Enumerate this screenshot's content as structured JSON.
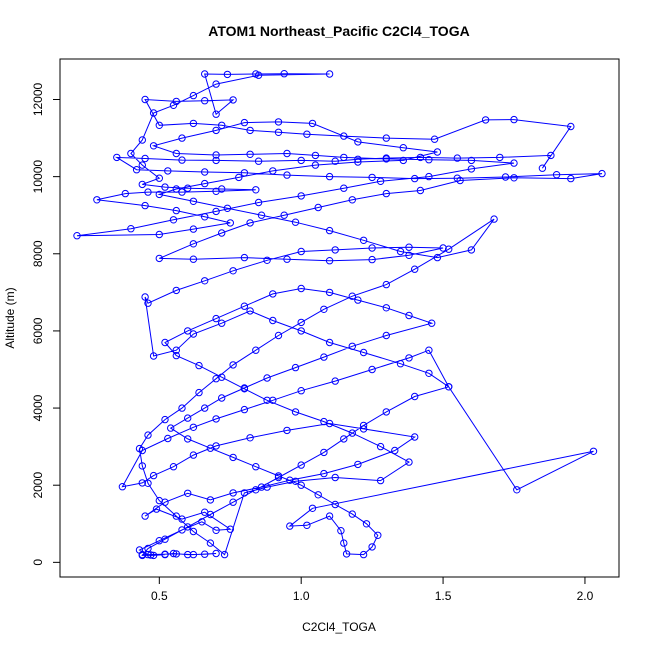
{
  "chart_data": {
    "type": "line",
    "title": "ATOM1 Northeast_Pacific C2Cl4_TOGA",
    "xlabel": "C2Cl4_TOGA",
    "ylabel": "Altitude (m)",
    "xlim": [
      0.15,
      2.12
    ],
    "ylim": [
      -380,
      13050
    ],
    "xticks": [
      0.5,
      1.0,
      1.5,
      2.0
    ],
    "xtick_labels": [
      "0.5",
      "1.0",
      "1.5",
      "2.0"
    ],
    "yticks": [
      0,
      2000,
      4000,
      6000,
      8000,
      10000,
      12000
    ],
    "ytick_labels": [
      "0",
      "2000",
      "4000",
      "6000",
      "8000",
      "10000",
      "12000"
    ],
    "marker": "open-circle",
    "grid": false,
    "series": [
      {
        "color": "#0000ff",
        "points": [
          [
            0.44,
            200
          ],
          [
            0.47,
            190
          ],
          [
            0.52,
            210
          ],
          [
            0.55,
            230
          ],
          [
            0.6,
            200
          ],
          [
            0.66,
            210
          ],
          [
            0.7,
            230
          ],
          [
            0.62,
            200
          ],
          [
            0.56,
            220
          ],
          [
            0.46,
            200
          ],
          [
            0.43,
            320
          ],
          [
            0.5,
            560
          ],
          [
            0.58,
            840
          ],
          [
            0.65,
            1050
          ],
          [
            0.7,
            830
          ],
          [
            0.75,
            860
          ],
          [
            0.66,
            1300
          ],
          [
            0.58,
            1120
          ],
          [
            0.49,
            1380
          ],
          [
            0.45,
            1200
          ],
          [
            0.52,
            1560
          ],
          [
            0.6,
            1790
          ],
          [
            0.68,
            1620
          ],
          [
            0.76,
            1800
          ],
          [
            0.86,
            1950
          ],
          [
            0.96,
            2130
          ],
          [
            1.08,
            2300
          ],
          [
            1.2,
            2540
          ],
          [
            1.33,
            2900
          ],
          [
            1.4,
            3250
          ],
          [
            1.22,
            3460
          ],
          [
            1.1,
            3600
          ],
          [
            0.95,
            3420
          ],
          [
            0.82,
            3230
          ],
          [
            0.7,
            3020
          ],
          [
            0.62,
            2780
          ],
          [
            0.55,
            2480
          ],
          [
            0.48,
            2250
          ],
          [
            0.44,
            2060
          ],
          [
            0.37,
            1960
          ],
          [
            0.44,
            2900
          ],
          [
            0.53,
            3210
          ],
          [
            0.62,
            3500
          ],
          [
            0.7,
            3720
          ],
          [
            0.8,
            3960
          ],
          [
            0.9,
            4200
          ],
          [
            1.0,
            4450
          ],
          [
            1.12,
            4700
          ],
          [
            1.25,
            5000
          ],
          [
            1.38,
            5300
          ],
          [
            1.45,
            5500
          ],
          [
            1.52,
            4550
          ],
          [
            1.45,
            4900
          ],
          [
            1.35,
            5150
          ],
          [
            1.22,
            5440
          ],
          [
            1.1,
            5700
          ],
          [
            1.0,
            6000
          ],
          [
            0.9,
            6270
          ],
          [
            0.82,
            6520
          ],
          [
            0.72,
            6200
          ],
          [
            0.62,
            5920
          ],
          [
            0.56,
            5500
          ],
          [
            0.48,
            5350
          ],
          [
            0.45,
            6880
          ],
          [
            0.46,
            6720
          ],
          [
            0.56,
            7050
          ],
          [
            0.66,
            7300
          ],
          [
            0.76,
            7560
          ],
          [
            0.88,
            7830
          ],
          [
            1.0,
            8060
          ],
          [
            1.12,
            8100
          ],
          [
            1.25,
            8150
          ],
          [
            1.38,
            8170
          ],
          [
            1.5,
            8150
          ],
          [
            1.38,
            7960
          ],
          [
            1.25,
            7850
          ],
          [
            1.1,
            7820
          ],
          [
            0.95,
            7860
          ],
          [
            0.8,
            7900
          ],
          [
            0.62,
            7860
          ],
          [
            0.5,
            7880
          ],
          [
            0.62,
            8260
          ],
          [
            0.72,
            8540
          ],
          [
            0.82,
            8800
          ],
          [
            0.94,
            9000
          ],
          [
            1.06,
            9200
          ],
          [
            1.18,
            9400
          ],
          [
            1.3,
            9560
          ],
          [
            1.42,
            9640
          ],
          [
            1.56,
            9900
          ],
          [
            1.75,
            9970
          ],
          [
            1.95,
            9950
          ],
          [
            2.06,
            10080
          ],
          [
            1.9,
            10050
          ],
          [
            1.72,
            9990
          ],
          [
            1.55,
            9960
          ],
          [
            1.4,
            9950
          ],
          [
            1.25,
            9980
          ],
          [
            1.1,
            10000
          ],
          [
            0.95,
            10040
          ],
          [
            0.8,
            10100
          ],
          [
            0.66,
            10120
          ],
          [
            0.53,
            10150
          ],
          [
            0.42,
            10180
          ],
          [
            0.35,
            10500
          ],
          [
            0.45,
            10470
          ],
          [
            0.58,
            10430
          ],
          [
            0.7,
            10420
          ],
          [
            0.85,
            10400
          ],
          [
            1.0,
            10420
          ],
          [
            1.12,
            10400
          ],
          [
            1.2,
            10450
          ],
          [
            1.3,
            10480
          ],
          [
            1.42,
            10500
          ],
          [
            1.55,
            10480
          ],
          [
            1.7,
            10500
          ],
          [
            1.88,
            10550
          ],
          [
            1.85,
            10220
          ],
          [
            1.95,
            11300
          ],
          [
            1.75,
            11480
          ],
          [
            1.65,
            11470
          ],
          [
            1.47,
            10970
          ],
          [
            1.3,
            11000
          ],
          [
            1.15,
            11050
          ],
          [
            1.02,
            11100
          ],
          [
            0.92,
            11150
          ],
          [
            0.82,
            11200
          ],
          [
            0.72,
            11330
          ],
          [
            0.62,
            11380
          ],
          [
            0.5,
            11330
          ],
          [
            0.45,
            12000
          ],
          [
            0.56,
            11950
          ],
          [
            0.66,
            11970
          ],
          [
            0.76,
            11990
          ],
          [
            0.7,
            11620
          ],
          [
            0.66,
            12660
          ],
          [
            0.74,
            12650
          ],
          [
            0.84,
            12660
          ],
          [
            0.94,
            12670
          ],
          [
            1.1,
            12660
          ],
          [
            0.85,
            12630
          ],
          [
            0.7,
            12400
          ],
          [
            0.62,
            12100
          ],
          [
            0.55,
            11850
          ],
          [
            0.48,
            11650
          ],
          [
            0.44,
            10950
          ],
          [
            0.4,
            10600
          ],
          [
            0.44,
            10300
          ],
          [
            0.5,
            9960
          ],
          [
            0.44,
            9800
          ],
          [
            0.52,
            9730
          ],
          [
            0.6,
            9700
          ],
          [
            0.72,
            9680
          ],
          [
            0.84,
            9660
          ],
          [
            0.7,
            9620
          ],
          [
            0.58,
            9600
          ],
          [
            0.46,
            9600
          ],
          [
            0.38,
            9560
          ],
          [
            0.28,
            9400
          ],
          [
            0.45,
            9250
          ],
          [
            0.56,
            9120
          ],
          [
            0.66,
            8960
          ],
          [
            0.75,
            8800
          ],
          [
            0.62,
            8640
          ],
          [
            0.5,
            8500
          ],
          [
            0.21,
            8470
          ],
          [
            0.4,
            8650
          ],
          [
            0.55,
            8880
          ],
          [
            0.7,
            9100
          ],
          [
            0.85,
            9330
          ],
          [
            1.0,
            9500
          ],
          [
            1.15,
            9700
          ],
          [
            1.28,
            9880
          ],
          [
            1.45,
            10000
          ],
          [
            1.6,
            10200
          ],
          [
            1.75,
            10350
          ],
          [
            1.6,
            10420
          ],
          [
            1.45,
            10440
          ],
          [
            1.3,
            10460
          ],
          [
            1.15,
            10500
          ],
          [
            1.05,
            10550
          ],
          [
            0.95,
            10600
          ],
          [
            0.82,
            10580
          ],
          [
            0.7,
            10560
          ],
          [
            0.56,
            10600
          ],
          [
            0.48,
            10800
          ],
          [
            0.58,
            11000
          ],
          [
            0.7,
            11200
          ],
          [
            0.8,
            11400
          ],
          [
            0.92,
            11420
          ],
          [
            1.04,
            11380
          ],
          [
            1.2,
            10900
          ],
          [
            1.36,
            10750
          ],
          [
            1.48,
            10640
          ],
          [
            1.36,
            10420
          ],
          [
            1.2,
            10380
          ],
          [
            1.05,
            10300
          ],
          [
            0.9,
            10150
          ],
          [
            0.78,
            9980
          ],
          [
            0.66,
            9820
          ],
          [
            0.56,
            9680
          ],
          [
            0.5,
            9540
          ],
          [
            0.62,
            9360
          ],
          [
            0.74,
            9180
          ],
          [
            0.86,
            9000
          ],
          [
            0.98,
            8820
          ],
          [
            1.1,
            8600
          ],
          [
            1.22,
            8350
          ],
          [
            1.35,
            8060
          ],
          [
            1.48,
            7900
          ],
          [
            1.6,
            8100
          ],
          [
            1.68,
            8900
          ],
          [
            1.52,
            8120
          ],
          [
            1.4,
            7600
          ],
          [
            1.3,
            7200
          ],
          [
            1.18,
            6900
          ],
          [
            1.08,
            6560
          ],
          [
            1.0,
            6220
          ],
          [
            0.92,
            5880
          ],
          [
            0.84,
            5500
          ],
          [
            0.76,
            5120
          ],
          [
            0.7,
            4760
          ],
          [
            0.64,
            4400
          ],
          [
            0.58,
            4000
          ],
          [
            0.52,
            3700
          ],
          [
            0.46,
            3300
          ],
          [
            0.43,
            2950
          ],
          [
            0.44,
            2500
          ],
          [
            0.46,
            2050
          ],
          [
            0.5,
            1600
          ],
          [
            0.56,
            1200
          ],
          [
            0.62,
            800
          ],
          [
            0.68,
            500
          ],
          [
            0.73,
            200
          ],
          [
            0.8,
            1800
          ],
          [
            0.88,
            1950
          ],
          [
            0.98,
            2100
          ],
          [
            1.12,
            2200
          ],
          [
            1.28,
            2120
          ],
          [
            1.38,
            2600
          ],
          [
            1.28,
            3000
          ],
          [
            1.18,
            3350
          ],
          [
            1.08,
            3650
          ],
          [
            0.98,
            3900
          ],
          [
            0.88,
            4200
          ],
          [
            0.8,
            4500
          ],
          [
            0.72,
            4800
          ],
          [
            0.64,
            5100
          ],
          [
            0.56,
            5360
          ],
          [
            0.52,
            5700
          ],
          [
            0.6,
            6000
          ],
          [
            0.7,
            6320
          ],
          [
            0.8,
            6640
          ],
          [
            0.9,
            6960
          ],
          [
            1.0,
            7100
          ],
          [
            1.1,
            7000
          ],
          [
            1.2,
            6800
          ],
          [
            1.3,
            6600
          ],
          [
            1.38,
            6400
          ],
          [
            1.46,
            6200
          ],
          [
            1.3,
            5880
          ],
          [
            1.18,
            5600
          ],
          [
            1.08,
            5320
          ],
          [
            0.98,
            5050
          ],
          [
            0.88,
            4780
          ],
          [
            0.8,
            4520
          ],
          [
            0.72,
            4260
          ],
          [
            0.66,
            4000
          ],
          [
            0.6,
            3740
          ],
          [
            0.54,
            3480
          ],
          [
            0.6,
            3200
          ],
          [
            0.68,
            2960
          ],
          [
            0.76,
            2720
          ],
          [
            0.84,
            2480
          ],
          [
            0.92,
            2240
          ],
          [
            1.0,
            2000
          ],
          [
            1.06,
            1750
          ],
          [
            1.12,
            1500
          ],
          [
            1.18,
            1250
          ],
          [
            1.23,
            1000
          ],
          [
            1.27,
            700
          ],
          [
            1.25,
            400
          ],
          [
            1.22,
            200
          ],
          [
            1.16,
            220
          ],
          [
            1.15,
            500
          ],
          [
            1.14,
            820
          ],
          [
            1.1,
            1200
          ],
          [
            1.02,
            960
          ],
          [
            0.96,
            940
          ],
          [
            1.04,
            1400
          ],
          [
            2.03,
            2880
          ],
          [
            1.76,
            1880
          ],
          [
            1.52,
            4550
          ],
          [
            1.4,
            4300
          ],
          [
            1.3,
            3900
          ],
          [
            1.22,
            3550
          ],
          [
            1.15,
            3200
          ],
          [
            1.08,
            2850
          ],
          [
            1.0,
            2520
          ],
          [
            0.92,
            2200
          ],
          [
            0.84,
            1880
          ],
          [
            0.76,
            1560
          ],
          [
            0.68,
            1240
          ],
          [
            0.6,
            920
          ],
          [
            0.52,
            600
          ],
          [
            0.46,
            360
          ],
          [
            0.44,
            180
          ],
          [
            0.48,
            180
          ],
          [
            0.52,
            200
          ]
        ]
      }
    ]
  }
}
